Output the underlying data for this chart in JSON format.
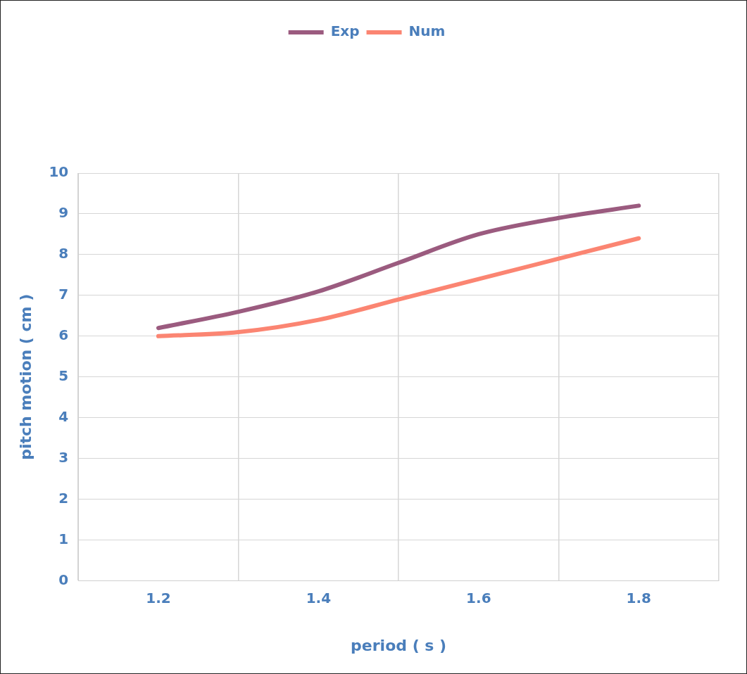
{
  "chart_data": {
    "type": "line",
    "xlabel": "period ( s )",
    "ylabel": "pitch motion ( cm )",
    "x": [
      1.2,
      1.3,
      1.4,
      1.5,
      1.6,
      1.7,
      1.8
    ],
    "series": [
      {
        "name": "Exp",
        "color": "#9b5b7f",
        "values": [
          6.2,
          6.6,
          7.1,
          7.8,
          8.5,
          8.9,
          9.2
        ]
      },
      {
        "name": "Num",
        "color": "#fb8572",
        "values": [
          6.0,
          6.1,
          6.4,
          6.9,
          7.4,
          7.9,
          8.4
        ]
      }
    ],
    "xlim": [
      1.1,
      1.9
    ],
    "xticks": [
      {
        "value": 1.1,
        "label": null
      },
      1.2,
      {
        "value": 1.3,
        "label": null
      },
      1.4,
      {
        "value": 1.5,
        "label": null
      },
      1.6,
      {
        "value": 1.7,
        "label": null
      },
      1.8,
      {
        "value": 1.9,
        "label": null
      }
    ],
    "ylim": [
      0,
      10
    ],
    "yticks": [
      0,
      1,
      2,
      3,
      4,
      5,
      6,
      7,
      8,
      9,
      10
    ],
    "grid": true,
    "legend": "top",
    "marker": "none",
    "line_style": "solid"
  }
}
